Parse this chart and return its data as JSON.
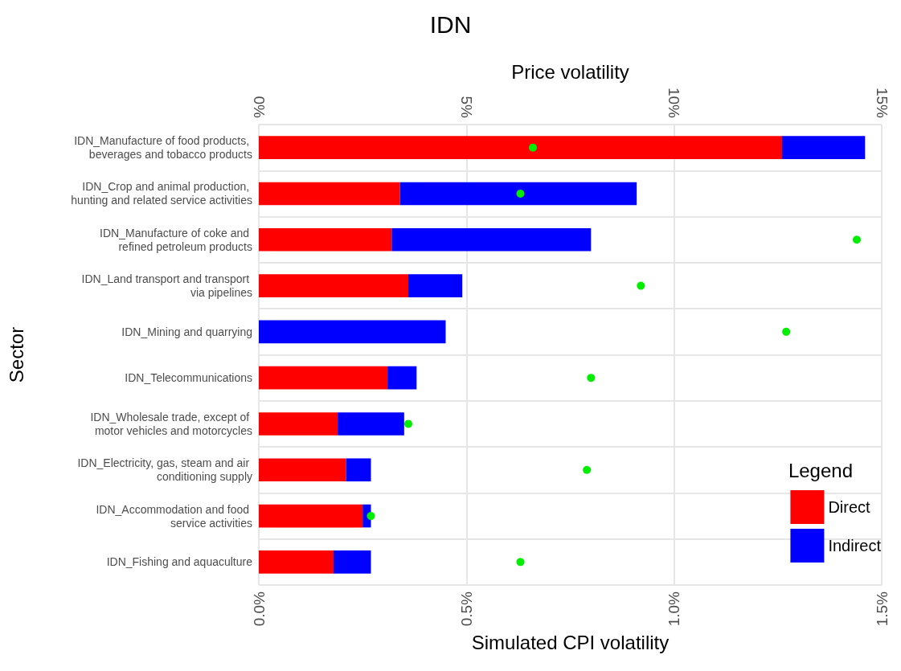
{
  "chart_data": {
    "type": "bar",
    "orientation": "horizontal",
    "stacked": true,
    "title": "IDN",
    "xlabel": "Simulated CPI volatility",
    "x2label": "Price volatility",
    "ylabel": "Sector",
    "legend_title": "Legend",
    "categories": [
      "IDN_Manufacture of food products, beverages and tobacco products",
      "IDN_Crop and animal production, hunting and related service activities",
      "IDN_Manufacture of coke and refined petroleum products",
      "IDN_Land transport and transport via pipelines",
      "IDN_Mining and quarrying",
      "IDN_Telecommunications",
      "IDN_Wholesale trade, except of motor vehicles and motorcycles",
      "IDN_Electricity, gas, steam and air conditioning supply",
      "IDN_Accommodation and food service activities",
      "IDN_Fishing and aquaculture"
    ],
    "series": [
      {
        "name": "Direct",
        "color": "#ff0000",
        "values": [
          1.26,
          0.34,
          0.32,
          0.36,
          0,
          0.31,
          0.19,
          0.21,
          0.25,
          0.18
        ]
      },
      {
        "name": "Indirect",
        "color": "#0000ff",
        "values": [
          0.2,
          0.57,
          0.48,
          0.13,
          0.45,
          0.07,
          0.16,
          0.06,
          0.02,
          0.09
        ]
      },
      {
        "type": "scatter",
        "axis": "x2",
        "color": "#00ee00",
        "values": [
          6.6,
          6.3,
          14.4,
          9.2,
          12.7,
          8.0,
          3.6,
          7.9,
          2.7,
          6.3
        ]
      }
    ],
    "xlim": [
      0,
      1.5
    ],
    "xticks": [
      {
        "value": 0,
        "label": "0.0%"
      },
      {
        "value": 0.5,
        "label": "0.5%"
      },
      {
        "value": 1,
        "label": "1.0%"
      },
      {
        "value": 1.5,
        "label": "1.5%"
      }
    ],
    "x2lim": [
      0,
      15
    ],
    "x2ticks": [
      {
        "value": 0,
        "label": "0%"
      },
      {
        "value": 5,
        "label": "5%"
      },
      {
        "value": 10,
        "label": "10%"
      },
      {
        "value": 15,
        "label": "15%"
      }
    ],
    "grid": true,
    "legend": "bottom right",
    "marker": "circle"
  }
}
